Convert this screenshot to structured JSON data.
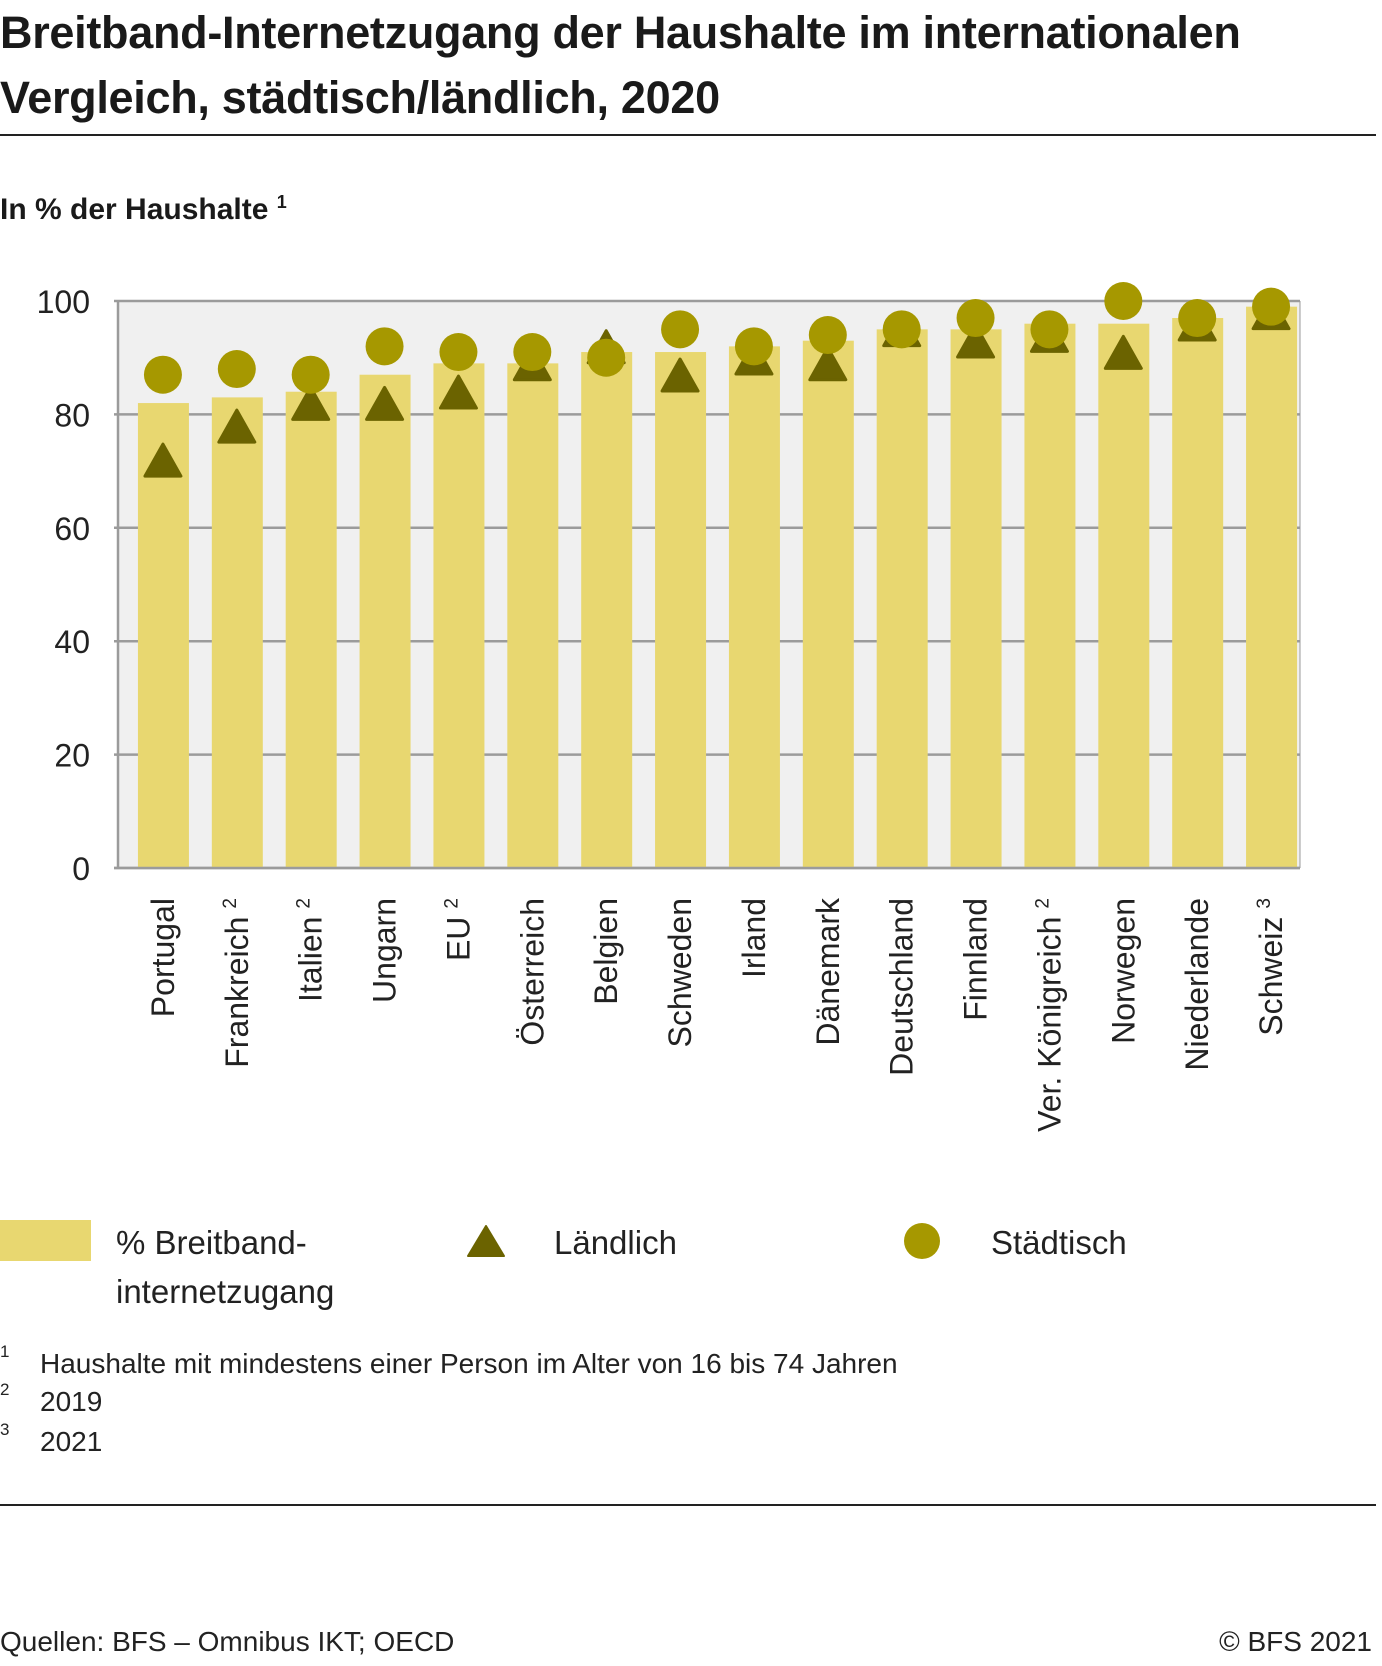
{
  "chart_data": {
    "type": "bar",
    "title": "Breitband-Internetzugang der Haushalte im internationalen Vergleich, städtisch/ländlich, 2020",
    "subtitle": "In % der Haushalte",
    "subtitle_footnote": "1",
    "ylim": [
      0,
      100
    ],
    "yticks": [
      0,
      20,
      40,
      60,
      80,
      100
    ],
    "grid": true,
    "categories": [
      "Portugal",
      "Frankreich",
      "Italien",
      "Ungarn",
      "EU",
      "Österreich",
      "Belgien",
      "Schweden",
      "Irland",
      "Dänemark",
      "Deutschland",
      "Finnland",
      "Ver. Königreich",
      "Norwegen",
      "Niederlande",
      "Schweiz"
    ],
    "category_footnotes": [
      "",
      "2",
      "2",
      "",
      "2",
      "",
      "",
      "",
      "",
      "",
      "",
      "",
      "2",
      "",
      "",
      "3"
    ],
    "series": [
      {
        "name": "% Breitband-internetzugang",
        "kind": "bar",
        "color": "#e8d770",
        "values": [
          82,
          83,
          84,
          87,
          89,
          89,
          91,
          91,
          92,
          93,
          95,
          95,
          96,
          96,
          97,
          99
        ]
      },
      {
        "name": "Ländlich",
        "kind": "triangle",
        "color": "#6b6300",
        "values": [
          71,
          77,
          81,
          81,
          83,
          88,
          91,
          86,
          89,
          88,
          94,
          92,
          93,
          90,
          95,
          97
        ]
      },
      {
        "name": "Städtisch",
        "kind": "circle",
        "color": "#a69800",
        "values": [
          87,
          88,
          87,
          92,
          91,
          91,
          90,
          95,
          92,
          94,
          95,
          97,
          95,
          100,
          97,
          99
        ]
      }
    ],
    "legend_position": "bottom"
  },
  "legend": {
    "bar_line1": "% Breitband-",
    "bar_line2": "internetzugang",
    "rural": "Ländlich",
    "urban": "Städtisch"
  },
  "notes": [
    {
      "num": "1",
      "text": "Haushalte mit mindestens einer Person im Alter von 16 bis 74 Jahren"
    },
    {
      "num": "2",
      "text": "2019"
    },
    {
      "num": "3",
      "text": "2021"
    }
  ],
  "footer": {
    "source": "Quellen: BFS – Omnibus IKT; OECD",
    "copyright": "© BFS 2021"
  },
  "colors": {
    "plot_bg": "#f0f0f0",
    "axis": "#9b9b9b"
  }
}
